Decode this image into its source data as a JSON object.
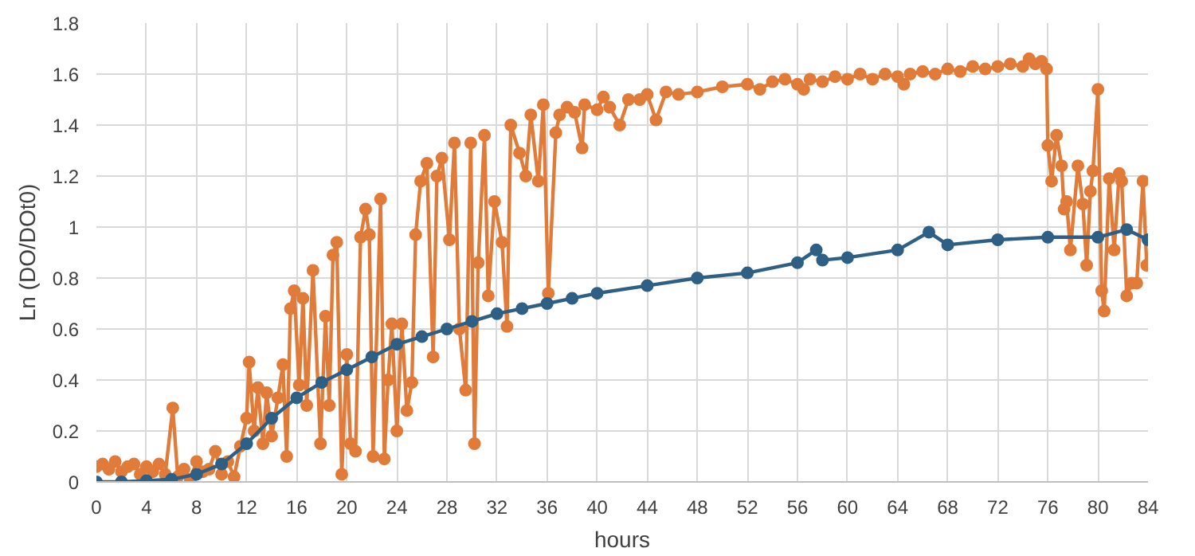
{
  "chart_data": {
    "type": "line",
    "xlabel": "hours",
    "ylabel": "Ln (DO/DOt0)",
    "xlim": [
      0,
      84
    ],
    "ylim": [
      0,
      1.8
    ],
    "xticks": [
      0,
      4,
      8,
      12,
      16,
      20,
      24,
      28,
      32,
      36,
      40,
      44,
      48,
      52,
      56,
      60,
      64,
      68,
      72,
      76,
      80,
      84
    ],
    "yticks": [
      0,
      0.2,
      0.4,
      0.6,
      0.8,
      1,
      1.2,
      1.4,
      1.6,
      1.8
    ],
    "grid": true,
    "marker": "circle",
    "line_style": "solid",
    "series": [
      {
        "color": "#e07b39",
        "x": [
          0,
          0.5,
          1,
          1.5,
          2,
          2.5,
          3,
          3.5,
          4,
          4.5,
          5,
          5.5,
          6.1,
          6.5,
          7,
          7.5,
          8,
          8.5,
          9,
          9.5,
          10,
          10.5,
          11,
          11.5,
          12,
          12.2,
          12.6,
          12.9,
          13.3,
          13.6,
          14,
          14.5,
          14.9,
          15.2,
          15.5,
          15.8,
          16.2,
          16.5,
          16.8,
          17.3,
          17.9,
          18.3,
          18.6,
          18.9,
          19.2,
          19.6,
          20,
          20.3,
          20.7,
          21.1,
          21.5,
          21.8,
          22.1,
          22.7,
          23,
          23.3,
          23.6,
          24,
          24.4,
          24.8,
          25.2,
          25.5,
          25.9,
          26.4,
          26.9,
          27.2,
          27.6,
          28.2,
          28.6,
          29.0,
          29.5,
          29.9,
          30.2,
          30.5,
          31,
          31.3,
          31.8,
          32.4,
          32.8,
          33.1,
          33.8,
          34.3,
          34.7,
          35.3,
          35.7,
          36.1,
          36.7,
          37,
          37.6,
          38.2,
          38.8,
          39,
          40,
          40.5,
          41,
          41.8,
          42.5,
          43.4,
          44,
          44.7,
          45.5,
          46.5,
          48,
          50,
          52,
          53,
          54,
          55,
          56,
          56.5,
          57,
          58,
          59,
          60,
          61,
          62,
          63,
          64,
          64.5,
          65,
          66,
          67,
          68,
          69,
          70,
          71,
          72,
          73,
          74,
          74.5,
          75,
          75.5,
          75.9,
          76,
          76.3,
          76.7,
          77.1,
          77.3,
          77.5,
          77.8,
          78.4,
          78.8,
          79.1,
          79.4,
          79.6,
          80,
          80.3,
          80.5,
          80.9,
          81.3,
          81.7,
          81.9,
          82.3,
          82.7,
          83.1,
          83.6,
          83.9
        ],
        "values": [
          0.06,
          0.07,
          0.05,
          0.08,
          0.04,
          0.06,
          0.07,
          0.03,
          0.06,
          0.04,
          0.07,
          0.03,
          0.29,
          0.02,
          0.05,
          0.01,
          0.08,
          0.04,
          0.05,
          0.12,
          0.03,
          0.08,
          0.02,
          0.14,
          0.25,
          0.47,
          0.2,
          0.37,
          0.15,
          0.35,
          0.18,
          0.33,
          0.46,
          0.1,
          0.68,
          0.75,
          0.38,
          0.72,
          0.3,
          0.83,
          0.15,
          0.65,
          0.3,
          0.89,
          0.94,
          0.03,
          0.5,
          0.15,
          0.12,
          0.96,
          1.07,
          0.97,
          0.1,
          1.11,
          0.09,
          0.4,
          0.62,
          0.2,
          0.62,
          0.28,
          0.39,
          0.97,
          1.18,
          1.25,
          0.49,
          1.2,
          1.27,
          0.95,
          1.33,
          0.6,
          0.36,
          1.33,
          0.15,
          0.86,
          1.36,
          0.73,
          1.1,
          0.94,
          0.61,
          1.4,
          1.29,
          1.2,
          1.44,
          1.18,
          1.48,
          0.74,
          1.37,
          1.44,
          1.47,
          1.45,
          1.31,
          1.48,
          1.46,
          1.51,
          1.47,
          1.4,
          1.5,
          1.5,
          1.52,
          1.42,
          1.53,
          1.52,
          1.53,
          1.55,
          1.56,
          1.54,
          1.57,
          1.58,
          1.56,
          1.54,
          1.58,
          1.57,
          1.59,
          1.58,
          1.6,
          1.58,
          1.6,
          1.59,
          1.56,
          1.6,
          1.61,
          1.6,
          1.62,
          1.61,
          1.63,
          1.62,
          1.63,
          1.64,
          1.63,
          1.66,
          1.64,
          1.65,
          1.62,
          1.32,
          1.18,
          1.36,
          1.24,
          1.07,
          1.1,
          0.91,
          1.24,
          1.09,
          0.85,
          1.14,
          1.22,
          1.54,
          0.75,
          0.67,
          1.19,
          0.91,
          1.21,
          1.18,
          0.73,
          0.78,
          0.78,
          1.18,
          0.85
        ]
      },
      {
        "color": "#2e5f84",
        "x": [
          0,
          2,
          4,
          6,
          8,
          10,
          12,
          14,
          16,
          18,
          20,
          22,
          24,
          26,
          28,
          30,
          32,
          34,
          36,
          38,
          40,
          44,
          48,
          52,
          56,
          57.5,
          58,
          60,
          64,
          66.5,
          68,
          72,
          76,
          80,
          82.3,
          84
        ],
        "values": [
          0,
          0,
          0.005,
          0.01,
          0.03,
          0.07,
          0.15,
          0.25,
          0.33,
          0.39,
          0.44,
          0.49,
          0.54,
          0.57,
          0.6,
          0.63,
          0.66,
          0.68,
          0.7,
          0.72,
          0.74,
          0.77,
          0.8,
          0.82,
          0.86,
          0.91,
          0.87,
          0.88,
          0.91,
          0.98,
          0.93,
          0.95,
          0.96,
          0.96,
          0.99,
          0.95
        ]
      }
    ]
  }
}
